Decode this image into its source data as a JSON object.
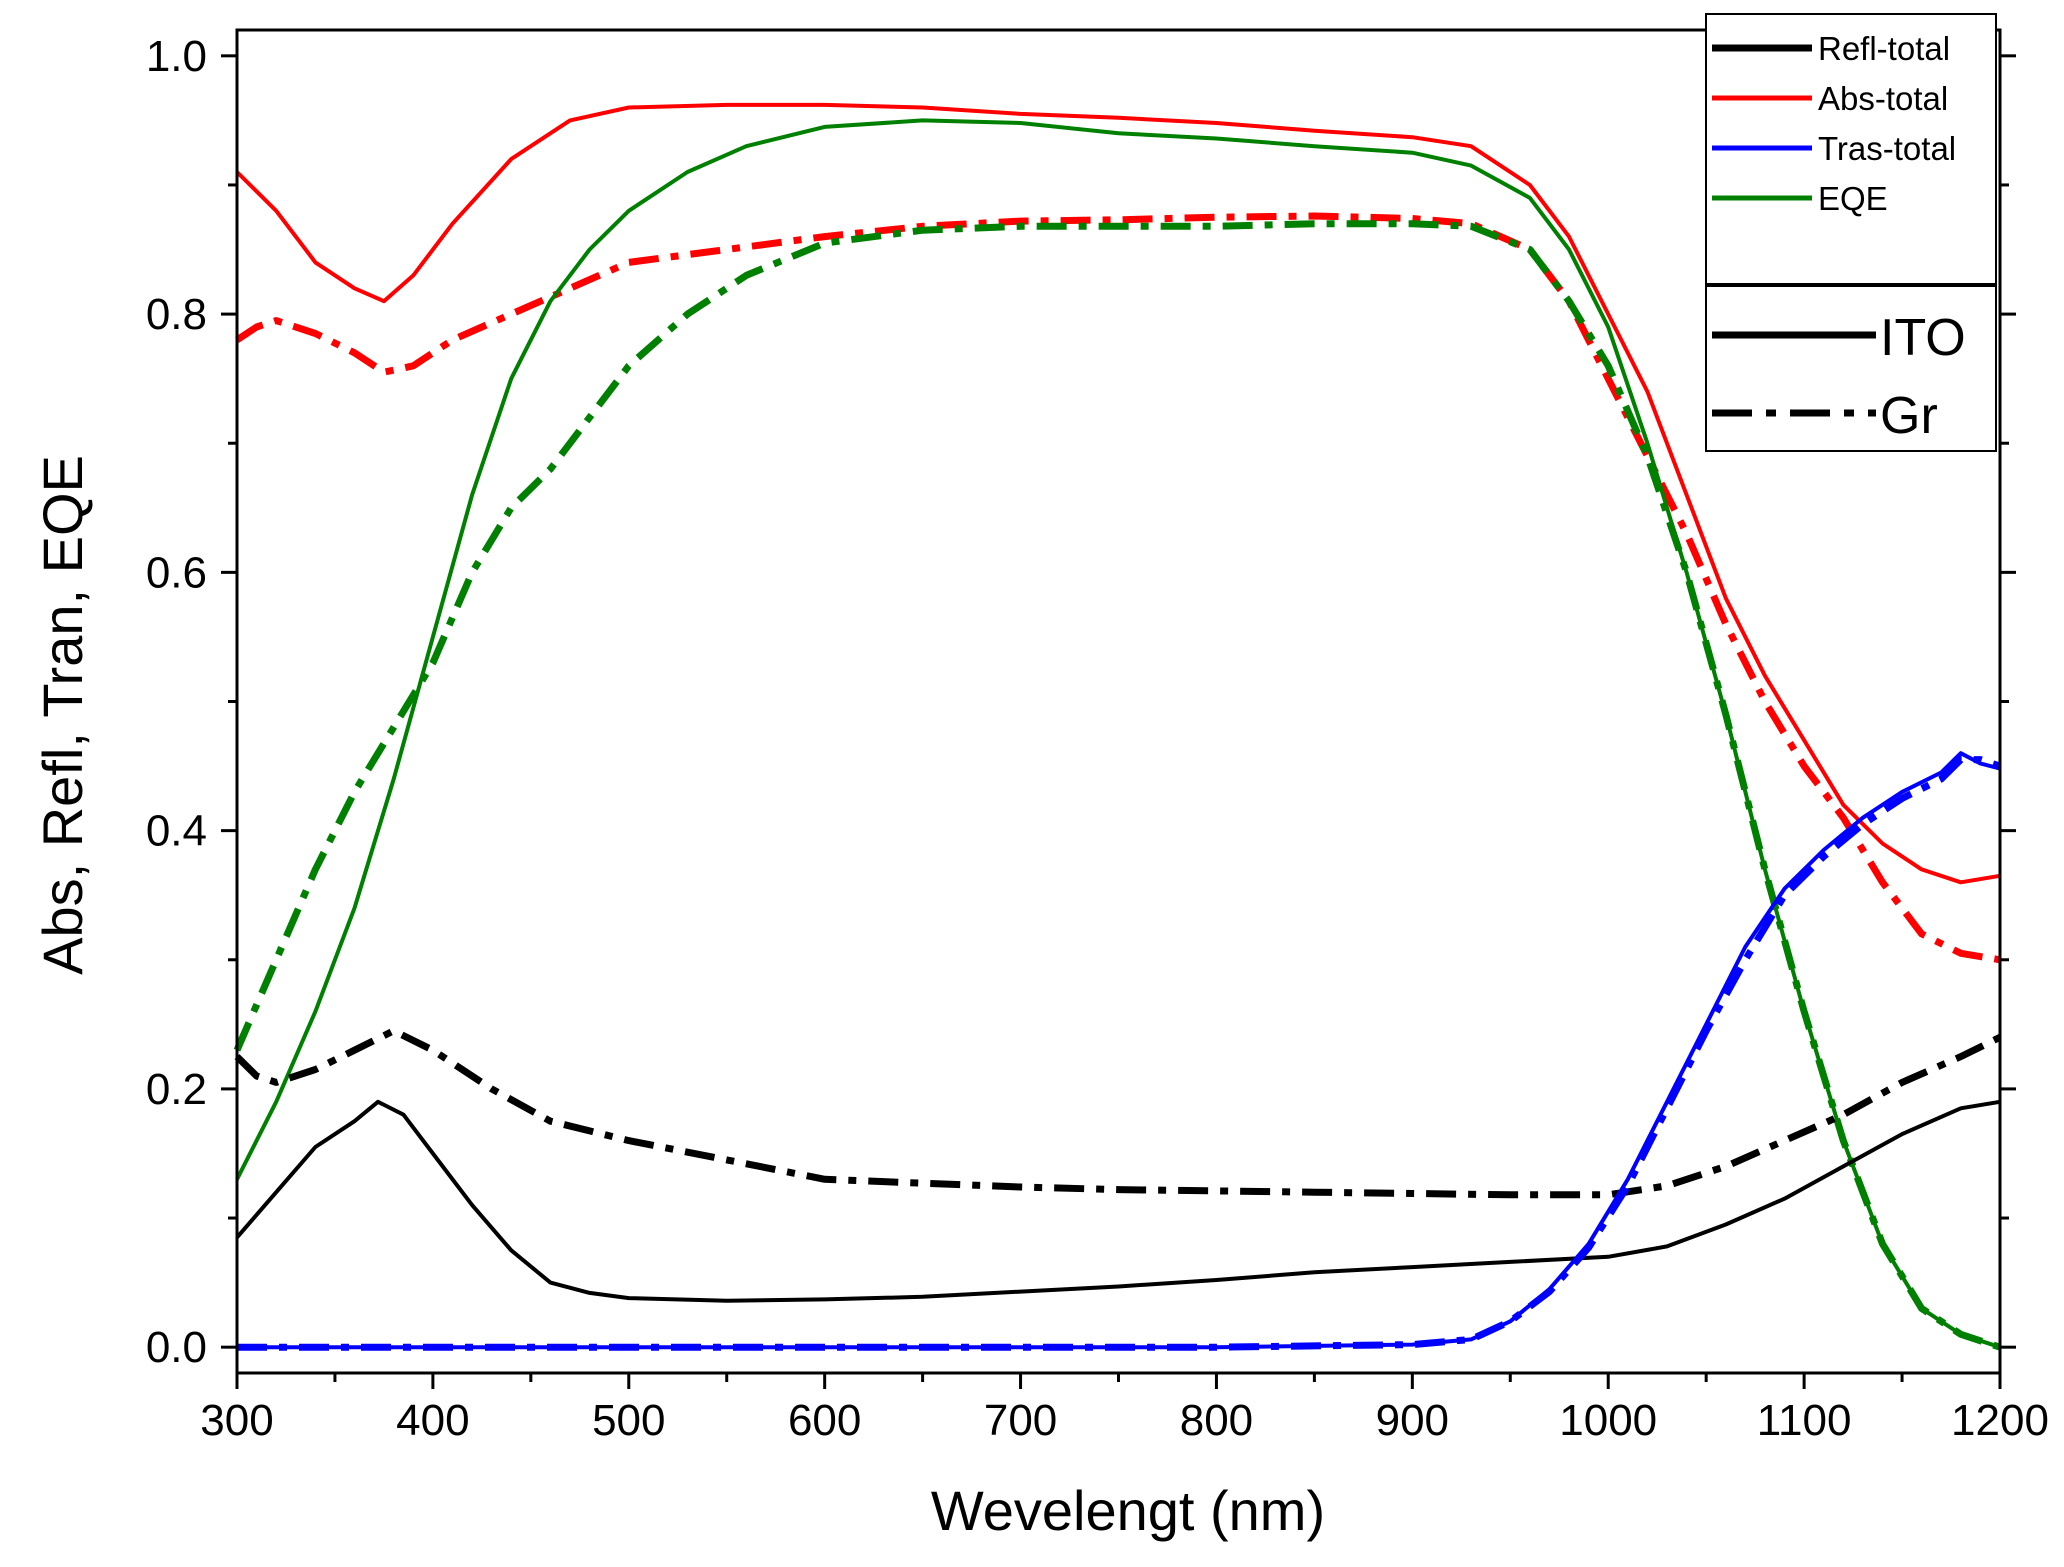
{
  "chart_data": {
    "type": "line",
    "title": "",
    "xlabel": "Wevelengt (nm)",
    "ylabel": "Abs,  Refl,  Tran,  EQE",
    "xlim": [
      300,
      1200
    ],
    "ylim": [
      -0.02,
      1.02
    ],
    "x_ticks": [
      300,
      400,
      500,
      600,
      700,
      800,
      900,
      1000,
      1100,
      1200
    ],
    "x_tick_labels": [
      "300",
      "400",
      "500",
      "600",
      "700",
      "800",
      "900",
      "1000",
      "1100",
      "1200"
    ],
    "y_ticks": [
      0.0,
      0.2,
      0.4,
      0.6,
      0.8,
      1.0
    ],
    "y_tick_labels": [
      "0.0",
      "0.2",
      "0.4",
      "0.6",
      "0.8",
      "1.0"
    ],
    "grid": false,
    "colors": {
      "refl": "#000000",
      "abs": "#ff0000",
      "tras": "#0000ff",
      "eqe": "#008000"
    },
    "legend_series": {
      "position": "top-right",
      "entries": [
        {
          "label": "Refl-total",
          "color": "#000000"
        },
        {
          "label": "Abs-total",
          "color": "#ff0000"
        },
        {
          "label": "Tras-total",
          "color": "#0000ff"
        },
        {
          "label": "EQE",
          "color": "#008000"
        }
      ]
    },
    "legend_style": {
      "position": "right",
      "entries": [
        {
          "label": "ITO",
          "dash": "solid"
        },
        {
          "label": "Gr",
          "dash": "dash-dot"
        }
      ]
    },
    "series": [
      {
        "quantity": "Abs-total",
        "electrode": "ITO",
        "color": "#ff0000",
        "dash": "solid",
        "x": [
          300,
          320,
          340,
          360,
          375,
          390,
          410,
          440,
          470,
          500,
          550,
          600,
          650,
          700,
          750,
          800,
          850,
          900,
          930,
          960,
          980,
          1000,
          1020,
          1040,
          1060,
          1080,
          1100,
          1120,
          1140,
          1160,
          1180,
          1200
        ],
        "y": [
          0.91,
          0.88,
          0.84,
          0.82,
          0.81,
          0.83,
          0.87,
          0.92,
          0.95,
          0.96,
          0.962,
          0.962,
          0.96,
          0.955,
          0.952,
          0.948,
          0.942,
          0.937,
          0.93,
          0.9,
          0.86,
          0.8,
          0.74,
          0.66,
          0.58,
          0.52,
          0.47,
          0.42,
          0.39,
          0.37,
          0.36,
          0.365
        ]
      },
      {
        "quantity": "Abs-total",
        "electrode": "Gr",
        "color": "#ff0000",
        "dash": "dashdot",
        "x": [
          300,
          310,
          320,
          340,
          360,
          375,
          390,
          410,
          440,
          470,
          500,
          550,
          600,
          650,
          700,
          750,
          800,
          850,
          900,
          930,
          960,
          980,
          1000,
          1020,
          1040,
          1060,
          1080,
          1100,
          1120,
          1140,
          1160,
          1180,
          1200
        ],
        "y": [
          0.78,
          0.79,
          0.795,
          0.785,
          0.77,
          0.755,
          0.76,
          0.78,
          0.8,
          0.82,
          0.84,
          0.85,
          0.86,
          0.868,
          0.872,
          0.873,
          0.875,
          0.876,
          0.874,
          0.87,
          0.85,
          0.81,
          0.75,
          0.69,
          0.63,
          0.56,
          0.5,
          0.45,
          0.41,
          0.36,
          0.32,
          0.305,
          0.3
        ]
      },
      {
        "quantity": "EQE",
        "electrode": "ITO",
        "color": "#008000",
        "dash": "solid",
        "x": [
          300,
          320,
          340,
          360,
          380,
          400,
          420,
          440,
          460,
          480,
          500,
          530,
          560,
          600,
          650,
          700,
          750,
          800,
          850,
          900,
          930,
          960,
          980,
          1000,
          1020,
          1040,
          1060,
          1080,
          1100,
          1120,
          1140,
          1160,
          1180,
          1200
        ],
        "y": [
          0.13,
          0.19,
          0.26,
          0.34,
          0.44,
          0.55,
          0.66,
          0.75,
          0.81,
          0.85,
          0.88,
          0.91,
          0.93,
          0.945,
          0.95,
          0.948,
          0.94,
          0.936,
          0.93,
          0.925,
          0.915,
          0.89,
          0.85,
          0.79,
          0.7,
          0.6,
          0.49,
          0.37,
          0.26,
          0.16,
          0.08,
          0.03,
          0.01,
          0.0
        ]
      },
      {
        "quantity": "EQE",
        "electrode": "Gr",
        "color": "#008000",
        "dash": "dashdot",
        "x": [
          300,
          320,
          340,
          360,
          380,
          400,
          420,
          440,
          460,
          480,
          500,
          530,
          560,
          600,
          650,
          700,
          750,
          800,
          850,
          900,
          930,
          960,
          980,
          1000,
          1020,
          1040,
          1060,
          1080,
          1100,
          1120,
          1140,
          1160,
          1180,
          1200
        ],
        "y": [
          0.23,
          0.3,
          0.37,
          0.43,
          0.48,
          0.53,
          0.6,
          0.65,
          0.68,
          0.72,
          0.76,
          0.8,
          0.83,
          0.855,
          0.865,
          0.868,
          0.868,
          0.868,
          0.87,
          0.87,
          0.868,
          0.85,
          0.81,
          0.76,
          0.69,
          0.6,
          0.49,
          0.37,
          0.26,
          0.16,
          0.08,
          0.03,
          0.01,
          0.0
        ]
      },
      {
        "quantity": "Refl-total",
        "electrode": "ITO",
        "color": "#000000",
        "dash": "solid",
        "x": [
          300,
          320,
          340,
          360,
          372,
          385,
          400,
          420,
          440,
          460,
          480,
          500,
          550,
          600,
          650,
          700,
          750,
          800,
          850,
          900,
          950,
          1000,
          1030,
          1060,
          1090,
          1120,
          1150,
          1180,
          1200
        ],
        "y": [
          0.085,
          0.12,
          0.155,
          0.175,
          0.19,
          0.18,
          0.15,
          0.11,
          0.075,
          0.05,
          0.042,
          0.038,
          0.036,
          0.037,
          0.039,
          0.043,
          0.047,
          0.052,
          0.058,
          0.062,
          0.066,
          0.07,
          0.078,
          0.095,
          0.115,
          0.14,
          0.165,
          0.185,
          0.19
        ]
      },
      {
        "quantity": "Refl-total",
        "electrode": "Gr",
        "color": "#000000",
        "dash": "dashdot",
        "x": [
          300,
          310,
          320,
          340,
          360,
          380,
          400,
          430,
          460,
          500,
          550,
          600,
          650,
          700,
          750,
          800,
          850,
          900,
          950,
          1000,
          1030,
          1060,
          1090,
          1120,
          1150,
          1180,
          1200
        ],
        "y": [
          0.225,
          0.21,
          0.205,
          0.215,
          0.23,
          0.245,
          0.23,
          0.2,
          0.175,
          0.16,
          0.145,
          0.13,
          0.127,
          0.124,
          0.122,
          0.121,
          0.12,
          0.119,
          0.118,
          0.118,
          0.125,
          0.14,
          0.16,
          0.18,
          0.205,
          0.225,
          0.24
        ]
      },
      {
        "quantity": "Tras-total",
        "electrode": "ITO",
        "color": "#0000ff",
        "dash": "solid",
        "x": [
          300,
          400,
          500,
          600,
          700,
          800,
          900,
          930,
          950,
          970,
          990,
          1010,
          1030,
          1050,
          1070,
          1090,
          1110,
          1130,
          1150,
          1170,
          1180,
          1190,
          1200
        ],
        "y": [
          0.0,
          0.0,
          0.0,
          0.0,
          0.0,
          0.0,
          0.002,
          0.006,
          0.02,
          0.045,
          0.08,
          0.13,
          0.19,
          0.25,
          0.31,
          0.355,
          0.385,
          0.41,
          0.43,
          0.445,
          0.46,
          0.452,
          0.448
        ]
      },
      {
        "quantity": "Tras-total",
        "electrode": "Gr",
        "color": "#0000ff",
        "dash": "dashdot",
        "x": [
          300,
          400,
          500,
          600,
          700,
          800,
          900,
          930,
          950,
          970,
          990,
          1010,
          1030,
          1050,
          1070,
          1090,
          1110,
          1130,
          1150,
          1170,
          1180,
          1190,
          1200
        ],
        "y": [
          0.0,
          0.0,
          0.0,
          0.0,
          0.0,
          0.0,
          0.002,
          0.006,
          0.02,
          0.043,
          0.077,
          0.125,
          0.185,
          0.245,
          0.3,
          0.35,
          0.38,
          0.405,
          0.425,
          0.44,
          0.455,
          0.455,
          0.45
        ]
      }
    ]
  }
}
